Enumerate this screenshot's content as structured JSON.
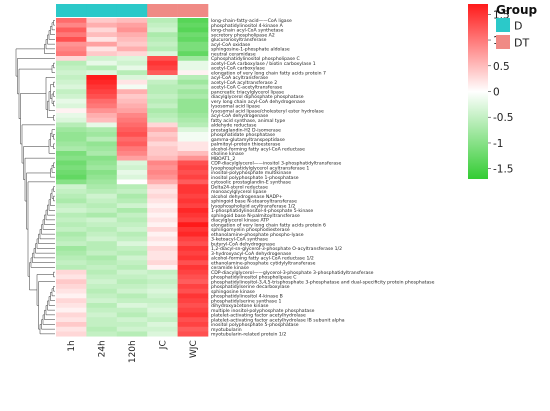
{
  "chart_data": {
    "type": "heatmap",
    "title": "",
    "columns": [
      "1h",
      "24h",
      "120h",
      "JC",
      "WJC"
    ],
    "column_groups": [
      "D",
      "D",
      "D",
      "DT",
      "DT"
    ],
    "annotation_legend": {
      "title": "Group",
      "items": [
        {
          "label": "D",
          "color": "#2bc9c9"
        },
        {
          "label": "DT",
          "color": "#f08a85"
        }
      ]
    },
    "color_scale": {
      "min": -1.7,
      "max": 1.7,
      "low_color": "#33cc33",
      "mid_color": "#ffffff",
      "high_color": "#ff1a1a",
      "ticks": [
        "1.5",
        "1",
        "0.5",
        "0",
        "-0.5",
        "-1",
        "-1.5"
      ],
      "tick_values": [
        1.5,
        1,
        0.5,
        0,
        -0.5,
        -1,
        -1.5
      ]
    },
    "rows": [
      {
        "label": "long-chain-fatty-acid——CoA ligase",
        "values": [
          1.1,
          0.4,
          0.5,
          -0.6,
          -1.4
        ]
      },
      {
        "label": "phosphatidylinositol 4-kinase A",
        "values": [
          0.9,
          0.6,
          0.7,
          -0.5,
          -1.3
        ]
      },
      {
        "label": "long-chain acyl-CoA synthetase",
        "values": [
          1.2,
          0.3,
          0.8,
          -0.4,
          -1.4
        ]
      },
      {
        "label": "secretory phospholipase A2",
        "values": [
          1.0,
          0.5,
          0.6,
          -0.7,
          -1.2
        ]
      },
      {
        "label": "glucuronosyltransferase",
        "values": [
          1.3,
          0.2,
          0.5,
          -0.6,
          -1.3
        ]
      },
      {
        "label": "acyl-CoA oxidase",
        "values": [
          0.8,
          0.7,
          0.4,
          -0.5,
          -1.1
        ]
      },
      {
        "label": "sphingosine-1-phosphate aldolase",
        "values": [
          0.9,
          0.2,
          0.6,
          -0.6,
          -1.1
        ]
      },
      {
        "label": "neutral ceramidase",
        "values": [
          1.0,
          0.4,
          0.3,
          -0.3,
          -1.3
        ]
      },
      {
        "label": "Cphosphatidylinositol phospholipase C",
        "values": [
          0.3,
          -0.4,
          -0.3,
          1.3,
          -0.8
        ]
      },
      {
        "label": "acetyl-CoA carboxylase / biotin carboxylase 1",
        "values": [
          -0.6,
          -0.2,
          -0.4,
          1.5,
          -0.2
        ]
      },
      {
        "label": "acetyl-CoA carboxylase",
        "values": [
          -0.5,
          -0.6,
          -0.2,
          1.4,
          -0.2
        ]
      },
      {
        "label": "elongation of very long chain fatty acids protein 7",
        "values": [
          -0.4,
          -0.3,
          -0.6,
          1.2,
          0.1
        ]
      },
      {
        "label": "acyl-CoA acyltransferase",
        "values": [
          -0.5,
          1.7,
          -0.3,
          -0.2,
          -0.6
        ]
      },
      {
        "label": "acetyl-CoA acyltransferase 2",
        "values": [
          -0.4,
          1.6,
          0.2,
          -0.5,
          -0.8
        ]
      },
      {
        "label": "acetyl-CoA C-acetyltransferase",
        "values": [
          -0.3,
          1.5,
          -0.1,
          -0.6,
          -0.6
        ]
      },
      {
        "label": "pancreatic triacylglycerol lipase",
        "values": [
          -0.5,
          1.4,
          0.6,
          -0.6,
          -0.8
        ]
      },
      {
        "label": "diacylglycerol diphosphate phosphatase",
        "values": [
          -0.4,
          1.3,
          0.4,
          -0.5,
          -0.7
        ]
      },
      {
        "label": "very long chain acyl-CoA dehydrogenase",
        "values": [
          -0.2,
          1.1,
          0.5,
          -0.6,
          -0.9
        ]
      },
      {
        "label": "lysosomal acid lipase",
        "values": [
          -0.3,
          1.0,
          0.6,
          -0.5,
          -0.9
        ]
      },
      {
        "label": "lysosomal acid lipase/cholesteryl ester hydrolase",
        "values": [
          0.1,
          0.8,
          0.7,
          -0.7,
          -0.9
        ]
      },
      {
        "label": "acyl-CoA dehydrogenase",
        "values": [
          -0.2,
          0.6,
          0.9,
          -0.6,
          -0.8
        ]
      },
      {
        "label": "fatty acid synthase, animal type",
        "values": [
          -0.3,
          0.5,
          1.0,
          -0.5,
          -0.7
        ]
      },
      {
        "label": "aldehyde reductase",
        "values": [
          -0.6,
          -0.2,
          1.1,
          0.3,
          -0.6
        ]
      },
      {
        "label": "prostaglandin-H2 D-isomerase",
        "values": [
          -0.8,
          -0.7,
          1.2,
          0.6,
          -0.3
        ]
      },
      {
        "label": "phosphatidate phosphatase",
        "values": [
          -0.9,
          -0.8,
          1.3,
          0.4,
          -0.1
        ]
      },
      {
        "label": "gamma-glutamyltranspeptidase",
        "values": [
          -0.9,
          -0.6,
          1.1,
          0.5,
          -0.1
        ]
      },
      {
        "label": "palmitoyl-protein thioesterase",
        "values": [
          -0.8,
          -0.9,
          1.2,
          0.3,
          0.2
        ]
      },
      {
        "label": "alcohol-forming fatty acyl-CoA reductase",
        "values": [
          -0.7,
          -0.8,
          1.0,
          0.4,
          0.2
        ]
      },
      {
        "label": "choline kinase",
        "values": [
          -1.1,
          -0.7,
          0.9,
          0.4,
          0.5
        ]
      },
      {
        "label": "MBOAT1_2",
        "values": [
          -1.0,
          -1.0,
          0.7,
          0.5,
          0.8
        ]
      },
      {
        "label": "CDP-diacylglycerol——inositol 3-phosphatidyltransferase",
        "values": [
          -1.2,
          -0.9,
          -0.3,
          0.9,
          1.3
        ]
      },
      {
        "label": "lysophosphatidylglycerol acyltransferase 1",
        "values": [
          -1.1,
          -0.8,
          -0.4,
          0.8,
          1.4
        ]
      },
      {
        "label": "inositol-polyphosphate multikinase",
        "values": [
          -1.2,
          -1.0,
          -0.2,
          0.9,
          1.3
        ]
      },
      {
        "label": "inositol polyphosphate 1-phosphatase",
        "values": [
          -1.3,
          -0.9,
          -0.3,
          0.8,
          1.4
        ]
      },
      {
        "label": "cytosolic prostaglandin-E synthase",
        "values": [
          -1.0,
          -0.8,
          0.0,
          0.6,
          1.2
        ]
      },
      {
        "label": "Delta24-sterol reductase",
        "values": [
          -0.4,
          -0.7,
          -0.6,
          0.3,
          1.5
        ]
      },
      {
        "label": "monoacylglycerol lipase",
        "values": [
          -0.5,
          -0.6,
          -0.5,
          0.2,
          1.5
        ]
      },
      {
        "label": "alcohol dehydrogenase NADP+",
        "values": [
          -0.6,
          -0.4,
          -0.7,
          0.3,
          1.4
        ]
      },
      {
        "label": "sphingoid base N-stearoyltransferase",
        "values": [
          -0.7,
          -0.5,
          -0.6,
          0.2,
          1.5
        ]
      },
      {
        "label": "lysophospholipid acyltransferase 1/2",
        "values": [
          -0.5,
          -0.6,
          -0.4,
          0.1,
          1.4
        ]
      },
      {
        "label": "1-phosphatidylinositol-4-phosphate 5-kinase",
        "values": [
          -0.4,
          -0.5,
          -0.7,
          0.2,
          1.6
        ]
      },
      {
        "label": "sphingoid base N-palmitoyltransferase",
        "values": [
          -0.6,
          -0.7,
          -0.5,
          0.1,
          1.5
        ]
      },
      {
        "label": "diacylglycerol kinase ATP",
        "values": [
          -0.5,
          -0.4,
          -0.6,
          0.2,
          1.4
        ]
      },
      {
        "label": "elongation of very long chain fatty acids protein 6",
        "values": [
          -0.6,
          -0.5,
          -0.5,
          0.1,
          1.7
        ]
      },
      {
        "label": "sphingomyelin phosphodiesterase",
        "values": [
          -0.5,
          -0.6,
          -0.4,
          0.3,
          1.5
        ]
      },
      {
        "label": "ethanolamine-phosphate phospho-lyase",
        "values": [
          -0.7,
          -0.5,
          -0.6,
          0.1,
          1.6
        ]
      },
      {
        "label": "3-ketoacyl-CoA synthase",
        "values": [
          -0.6,
          -0.4,
          -0.5,
          0.2,
          1.4
        ]
      },
      {
        "label": "butyryl-CoA dehydrogenase",
        "values": [
          -0.5,
          -0.6,
          -0.3,
          0.1,
          1.3
        ]
      },
      {
        "label": "1,2-diacyl-sn-glycerol-3-phosphate O-acyltransferase 1/2",
        "values": [
          -0.8,
          -0.6,
          -0.5,
          0.3,
          1.5
        ]
      },
      {
        "label": "3-hydroxyacyl-CoA dehydrogenase",
        "values": [
          -0.7,
          -0.5,
          -0.6,
          0.2,
          1.4
        ]
      },
      {
        "label": "alcohol-forming fatty acyl-CoA reductase 1/2",
        "values": [
          -0.6,
          -0.7,
          -0.4,
          0.2,
          1.5
        ]
      },
      {
        "label": "ethanolamine-phosphate cytidylyltransferase",
        "values": [
          -0.5,
          -0.6,
          -0.5,
          0.3,
          1.3
        ]
      },
      {
        "label": "ceramide kinase",
        "values": [
          -0.6,
          -0.5,
          -0.6,
          0.1,
          1.5
        ]
      },
      {
        "label": "CDP-diacylglycerol——glycerol-3-phosphate 3-phosphatidyltransferase",
        "values": [
          0.3,
          -0.6,
          -0.4,
          -0.5,
          1.4
        ]
      },
      {
        "label": "phosphatidylinositol phospholipase C",
        "values": [
          0.2,
          -0.5,
          -0.5,
          -0.4,
          1.3
        ]
      },
      {
        "label": "phosphatidylinositol-3,4,5-trisphosphate 3-phosphatase and dual-specificity protein phosphatase",
        "values": [
          0.4,
          -0.4,
          -0.6,
          -0.5,
          1.2
        ]
      },
      {
        "label": "phosphatidylserine decarboxylase",
        "values": [
          0.3,
          -0.5,
          -0.5,
          -0.4,
          1.4
        ]
      },
      {
        "label": "sphingosine kinase",
        "values": [
          0.2,
          -0.6,
          -0.4,
          -0.3,
          1.3
        ]
      },
      {
        "label": "phosphatidylinositol 4-kinase B",
        "values": [
          0.1,
          -0.5,
          -0.6,
          -0.4,
          1.5
        ]
      },
      {
        "label": "phosphatidylserine synthase 1",
        "values": [
          0.3,
          -0.4,
          -0.5,
          -0.5,
          1.4
        ]
      },
      {
        "label": "dihydroxyacetone kinase",
        "values": [
          0.2,
          -0.6,
          -0.3,
          -0.4,
          1.3
        ]
      },
      {
        "label": "multiple inositol-polyphosphate phosphatase",
        "values": [
          0.1,
          -0.5,
          -0.5,
          -0.3,
          1.4
        ]
      },
      {
        "label": "platelet-activating factor acetylhydrolase",
        "values": [
          0.3,
          -0.4,
          -0.6,
          -0.4,
          1.5
        ]
      },
      {
        "label": "platelet-activating factor acetylhydrolase IB subunit alpha",
        "values": [
          0.2,
          -0.5,
          -0.4,
          -0.5,
          1.3
        ]
      },
      {
        "label": "inositol polyphosphate 5-phosphatase",
        "values": [
          0.4,
          -0.5,
          -0.5,
          -0.3,
          1.4
        ]
      },
      {
        "label": "myotubularin",
        "values": [
          0.2,
          -0.6,
          -0.4,
          -0.4,
          1.2
        ]
      },
      {
        "label": "myotubularin-related protein 1/2",
        "values": [
          0.3,
          -0.5,
          -0.6,
          -0.3,
          1.3
        ]
      }
    ]
  }
}
